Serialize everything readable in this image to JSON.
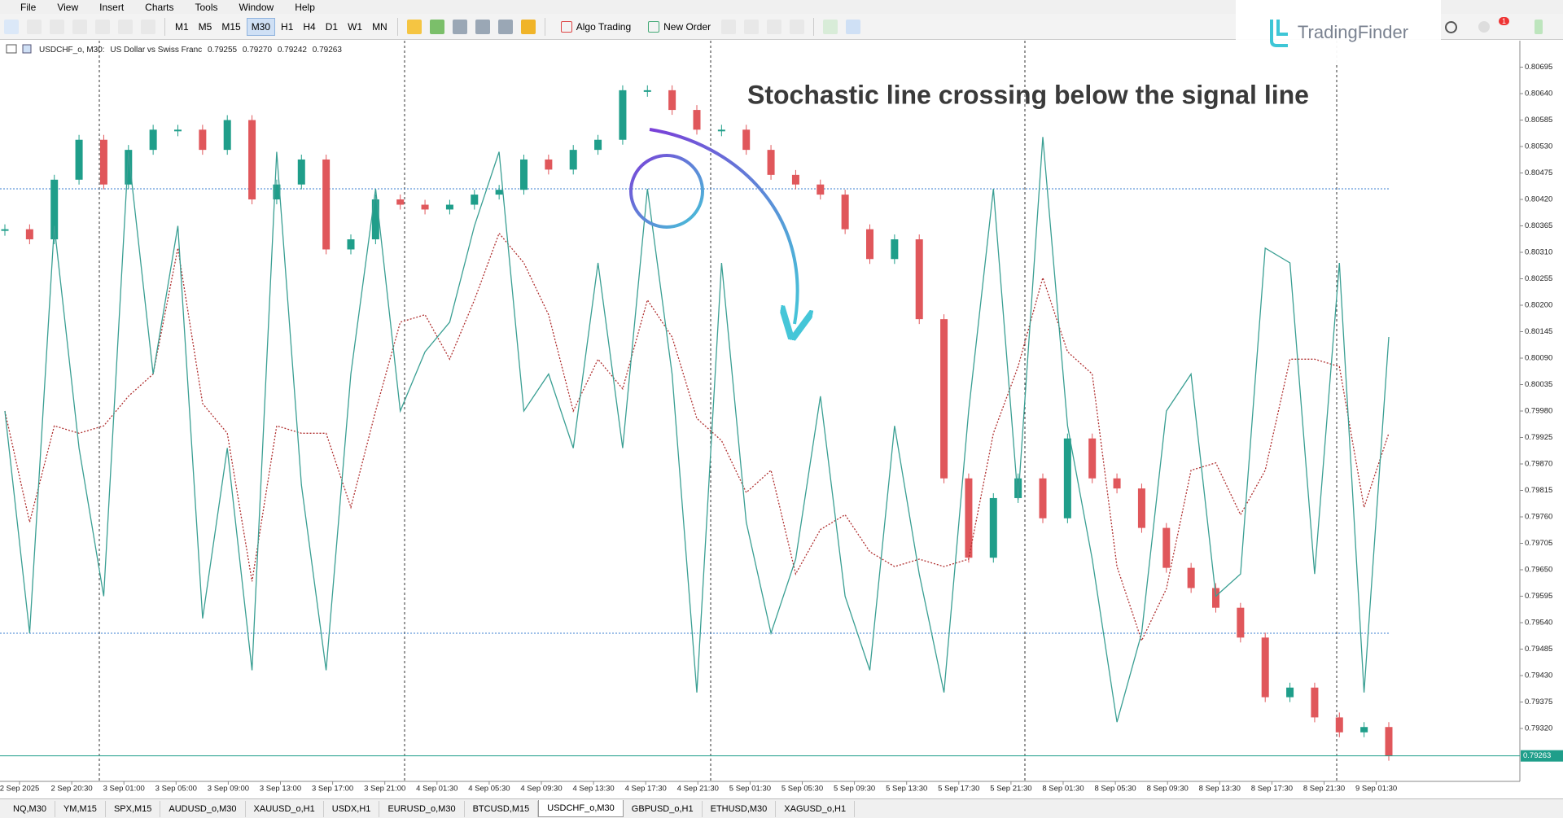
{
  "menu": [
    "File",
    "View",
    "Insert",
    "Charts",
    "Tools",
    "Window",
    "Help"
  ],
  "toolbar": {
    "timeframes": [
      "M1",
      "M5",
      "M15",
      "M30",
      "H1",
      "H4",
      "D1",
      "W1",
      "MN"
    ],
    "active_timeframe": "M30",
    "buttons": [
      "Algo Trading",
      "New Order"
    ],
    "notification_count": 1
  },
  "logo": "TradingFinder",
  "chart": {
    "symbol": "USDCHF_o, M30:",
    "description": "US Dollar vs Swiss Franc",
    "ohlc": [
      "0.79255",
      "0.79270",
      "0.79242",
      "0.79263"
    ],
    "annotation": "Stochastic line crossing below the signal line",
    "ylim": [
      0.7921,
      0.8075
    ],
    "yticks": [
      0.80695,
      {
        "value": 0.8064,
        "label": "0.80640"
      },
      0.80585,
      {
        "value": 0.8053,
        "label": "0.80530"
      },
      0.80475,
      {
        "value": 0.8042,
        "label": "0.80420"
      },
      0.80365,
      {
        "value": 0.8031,
        "label": "0.80310"
      },
      0.80255,
      {
        "value": 0.802,
        "label": "0.80200"
      },
      0.80145,
      {
        "value": 0.8009,
        "label": "0.80090"
      },
      0.80035,
      {
        "value": 0.7998,
        "label": "0.79980"
      },
      0.79925,
      {
        "value": 0.7987,
        "label": "0.79870"
      },
      0.79815,
      {
        "value": 0.7976,
        "label": "0.79760"
      },
      0.79705,
      {
        "value": 0.7965,
        "label": "0.79650"
      },
      0.79595,
      {
        "value": 0.7954,
        "label": "0.79540"
      },
      0.79485,
      {
        "value": 0.7943,
        "label": "0.79430"
      },
      0.79375,
      {
        "value": 0.7932,
        "label": "0.79320"
      }
    ],
    "current_price": 0.79263,
    "bull_color": "#1f9e8a",
    "bear_color": "#e0575b",
    "closes": [
      0.80358,
      0.80337,
      0.80461,
      0.80544,
      0.80451,
      0.80523,
      0.80565,
      0.80565,
      0.80523,
      0.80585,
      0.8042,
      0.80451,
      0.80503,
      0.80316,
      0.80337,
      0.8042,
      0.80409,
      0.80399,
      0.80409,
      0.8043,
      0.8044,
      0.80503,
      0.80482,
      0.80523,
      0.80544,
      0.80647,
      0.80647,
      0.80606,
      0.80565,
      0.80565,
      0.80523,
      0.80471,
      0.80451,
      0.8043,
      0.80358,
      0.80296,
      0.80337,
      0.80171,
      0.7984,
      0.79675,
      0.79799,
      0.7984,
      0.79757,
      0.79923,
      0.7984,
      0.79819,
      0.79737,
      0.79654,
      0.79612,
      0.79571,
      0.79509,
      0.79385,
      0.79405,
      0.79343,
      0.79312,
      0.79323,
      0.79263
    ],
    "stochastic": {
      "lim": [
        0,
        100
      ],
      "levels": [
        20,
        80
      ],
      "main_color": "#3a9f93",
      "signal_color": "#b03030",
      "level_color": "#3b7fd0",
      "main": [
        50,
        20,
        75,
        45,
        25,
        85,
        55,
        75,
        22,
        45,
        15,
        85,
        40,
        15,
        55,
        80,
        50,
        58,
        62,
        75,
        85,
        50,
        55,
        45,
        70,
        45,
        80,
        55,
        12,
        70,
        35,
        20,
        30,
        52,
        25,
        15,
        48,
        28,
        12,
        50,
        80,
        38,
        87,
        48,
        30,
        8,
        20,
        50,
        55,
        25,
        28,
        72,
        70,
        28,
        70,
        12,
        60
      ],
      "signal": [
        50,
        35,
        48,
        47,
        48,
        52,
        55,
        72,
        51,
        47,
        27,
        48,
        47,
        47,
        37,
        50,
        62,
        63,
        57,
        65,
        74,
        70,
        63,
        50,
        57,
        53,
        65,
        60,
        49,
        46,
        39,
        42,
        28,
        34,
        36,
        31,
        29,
        30,
        29,
        30,
        47,
        56,
        68,
        58,
        55,
        29,
        19,
        26,
        42,
        43,
        36,
        42,
        57,
        57,
        56,
        37,
        47
      ]
    },
    "time_labels": [
      "2 Sep 2025",
      "2 Sep 20:30",
      "3 Sep 01:00",
      "3 Sep 05:00",
      "3 Sep 09:00",
      "3 Sep 13:00",
      "3 Sep 17:00",
      "3 Sep 21:00",
      "4 Sep 01:30",
      "4 Sep 05:30",
      "4 Sep 09:30",
      "4 Sep 13:30",
      "4 Sep 17:30",
      "4 Sep 21:30",
      "5 Sep 01:30",
      "5 Sep 05:30",
      "5 Sep 09:30",
      "5 Sep 13:30",
      "5 Sep 17:30",
      "5 Sep 21:30",
      "8 Sep 01:30",
      "8 Sep 05:30",
      "8 Sep 09:30",
      "8 Sep 13:30",
      "8 Sep 17:30",
      "8 Sep 21:30",
      "9 Sep 01:30"
    ]
  },
  "tabs": [
    "NQ,M30",
    "YM,M15",
    "SPX,M15",
    "AUDUSD_o,M30",
    "XAUUSD_o,H1",
    "USDX,H1",
    "EURUSD_o,M30",
    "BTCUSD,M15",
    "USDCHF_o,M30",
    "GBPUSD_o,H1",
    "ETHUSD,M30",
    "XAGUSD_o,H1"
  ],
  "active_tab": "USDCHF_o,M30"
}
